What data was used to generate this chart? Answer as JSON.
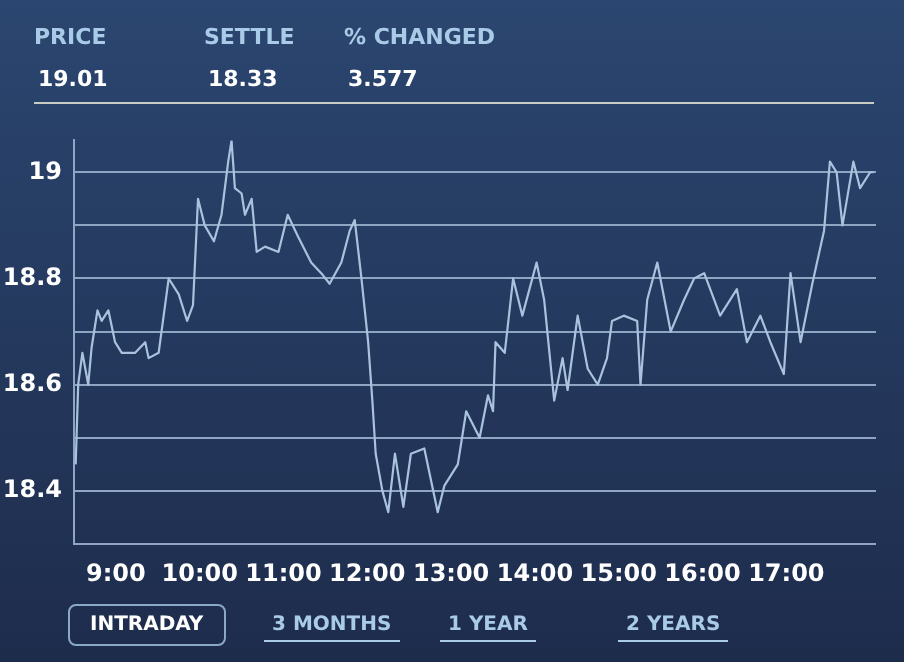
{
  "chart_data": {
    "type": "line",
    "annotations": [
      "PRICE",
      "SETTLE",
      "% CHANGED",
      "19.01",
      "18.33",
      "3.577",
      "INTRADAY",
      "3 MONTHS",
      "1 YEAR",
      "2 YEARS"
    ],
    "x": [
      8.52,
      8.55,
      8.6,
      8.67,
      8.71,
      8.78,
      8.83,
      8.91,
      8.99,
      9.07,
      9.23,
      9.35,
      9.39,
      9.51,
      9.63,
      9.75,
      9.85,
      9.92,
      9.98,
      10.06,
      10.17,
      10.26,
      10.34,
      10.38,
      10.42,
      10.5,
      10.54,
      10.62,
      10.68,
      10.78,
      10.94,
      11.05,
      11.17,
      11.33,
      11.45,
      11.55,
      11.69,
      11.79,
      11.85,
      11.93,
      12.01,
      12.06,
      12.1,
      12.18,
      12.25,
      12.33,
      12.43,
      12.52,
      12.68,
      12.84,
      12.92,
      13.08,
      13.18,
      13.34,
      13.44,
      13.5,
      13.53,
      13.64,
      13.74,
      13.85,
      14.02,
      14.11,
      14.23,
      14.33,
      14.39,
      14.51,
      14.63,
      14.75,
      14.86,
      14.92,
      15.06,
      15.22,
      15.26,
      15.34,
      15.46,
      15.62,
      15.78,
      15.9,
      16.02,
      16.21,
      16.41,
      16.53,
      16.69,
      16.81,
      16.97,
      17.05,
      17.17,
      17.31,
      17.45,
      17.52,
      17.6,
      17.67,
      17.8,
      17.88,
      18.0,
      18.04
    ],
    "series": [
      {
        "color": "#a9c3de",
        "values": [
          18.45,
          18.6,
          18.66,
          18.6,
          18.67,
          18.74,
          18.72,
          18.74,
          18.68,
          18.66,
          18.66,
          18.68,
          18.65,
          18.66,
          18.8,
          18.77,
          18.72,
          18.75,
          18.95,
          18.9,
          18.87,
          18.92,
          19.02,
          19.06,
          18.97,
          18.96,
          18.92,
          18.95,
          18.85,
          18.86,
          18.85,
          18.92,
          18.88,
          18.83,
          18.81,
          18.79,
          18.83,
          18.89,
          18.91,
          18.8,
          18.68,
          18.57,
          18.47,
          18.4,
          18.36,
          18.47,
          18.37,
          18.47,
          18.48,
          18.36,
          18.41,
          18.45,
          18.55,
          18.5,
          18.58,
          18.55,
          18.68,
          18.66,
          18.8,
          18.73,
          18.83,
          18.76,
          18.57,
          18.65,
          18.59,
          18.73,
          18.63,
          18.6,
          18.65,
          18.72,
          18.73,
          18.72,
          18.6,
          18.76,
          18.83,
          18.7,
          18.76,
          18.8,
          18.81,
          18.73,
          18.78,
          18.68,
          18.73,
          18.68,
          18.62,
          18.81,
          18.68,
          18.79,
          18.89,
          19.02,
          19.0,
          18.9,
          19.02,
          18.97,
          19.0,
          19.0
        ]
      }
    ],
    "xlim": [
      8.5,
      18.07
    ],
    "xticks": [
      {
        "value": 9,
        "label": "9:00"
      },
      {
        "value": 10,
        "label": "10:00"
      },
      {
        "value": 11,
        "label": "11:00"
      },
      {
        "value": 12,
        "label": "12:00"
      },
      {
        "value": 13,
        "label": "13:00"
      },
      {
        "value": 14,
        "label": "14:00"
      },
      {
        "value": 15,
        "label": "15:00"
      },
      {
        "value": 16,
        "label": "16:00"
      },
      {
        "value": 17,
        "label": "17:00"
      }
    ],
    "ylim": [
      18.3,
      19.06
    ],
    "yticks": [
      {
        "value": 18.3,
        "label": null
      },
      18.4,
      {
        "value": 18.5,
        "label": null
      },
      18.6,
      {
        "value": 18.7,
        "label": null
      },
      18.8,
      {
        "value": 18.9,
        "label": null
      },
      19
    ],
    "grid": "y",
    "marker": "none",
    "line_style": "solid"
  }
}
